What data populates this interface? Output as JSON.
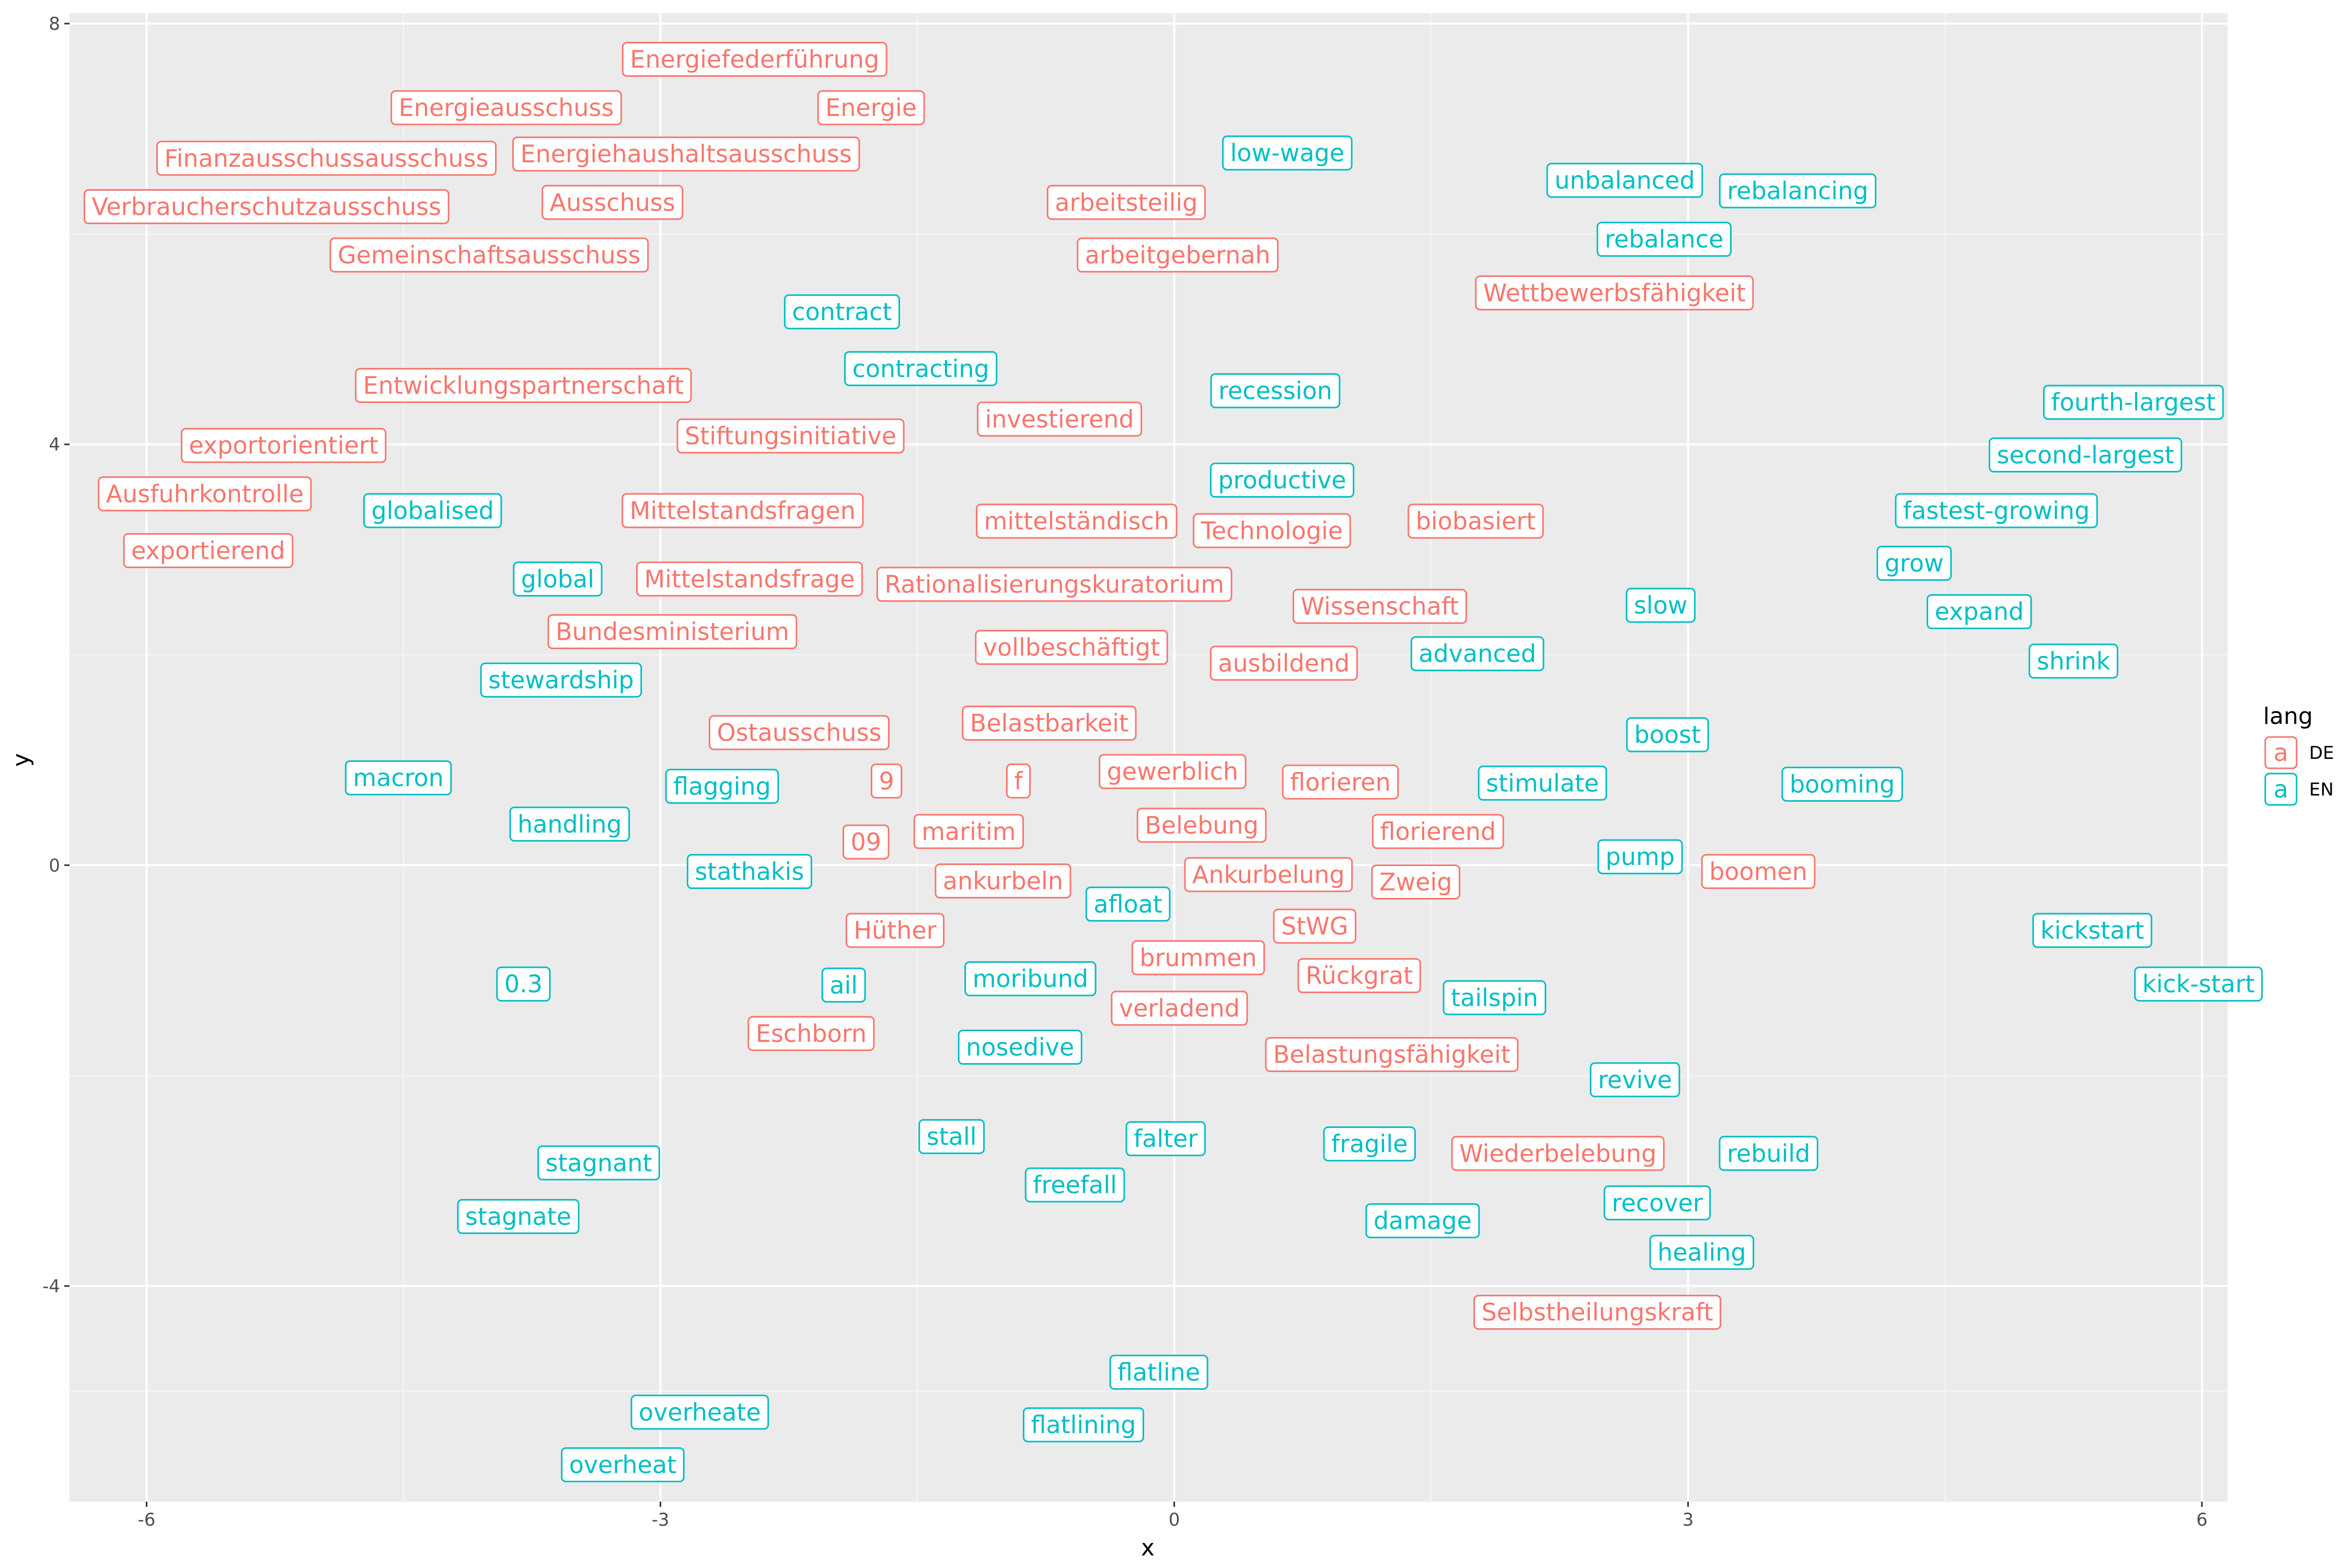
{
  "chart_data": {
    "type": "scatter",
    "xlabel": "x",
    "ylabel": "y",
    "xlim": [
      -6.45,
      6.15
    ],
    "ylim": [
      -6.05,
      8.1
    ],
    "x_ticks": [
      -6,
      -3,
      0,
      3,
      6
    ],
    "y_ticks": [
      8,
      4,
      0,
      -4
    ],
    "x_tick_labels": [
      "-6",
      "-3",
      "0",
      "3",
      "6"
    ],
    "y_tick_labels": [
      "8",
      "4",
      "0",
      "-4"
    ],
    "grid": true,
    "legend": {
      "title": "lang",
      "placement": "right",
      "entries": [
        {
          "key": "DE",
          "label": "DE",
          "glyph": "a",
          "color": "#F8766D"
        },
        {
          "key": "EN",
          "label": "EN",
          "glyph": "a",
          "color": "#00BFC4"
        }
      ]
    },
    "colors": {
      "DE": "#F8766D",
      "EN": "#00BFC4",
      "panel": "#EBEBEB",
      "grid_major": "#FFFFFF"
    },
    "points": [
      {
        "label": "Energiefederführung",
        "x": -2.45,
        "y": 7.66,
        "lang": "DE"
      },
      {
        "label": "Energieausschuss",
        "x": -3.9,
        "y": 7.2,
        "lang": "DE"
      },
      {
        "label": "Energie",
        "x": -1.77,
        "y": 7.2,
        "lang": "DE"
      },
      {
        "label": "Finanzausschussausschuss",
        "x": -4.95,
        "y": 6.72,
        "lang": "DE"
      },
      {
        "label": "Energiehaushaltsausschuss",
        "x": -2.85,
        "y": 6.76,
        "lang": "DE"
      },
      {
        "label": "Verbraucherschutzausschuss",
        "x": -5.3,
        "y": 6.26,
        "lang": "DE"
      },
      {
        "label": "Ausschuss",
        "x": -3.28,
        "y": 6.3,
        "lang": "DE"
      },
      {
        "label": "arbeitsteilig",
        "x": -0.28,
        "y": 6.3,
        "lang": "DE"
      },
      {
        "label": "Gemeinschaftsausschuss",
        "x": -4.0,
        "y": 5.8,
        "lang": "DE"
      },
      {
        "label": "arbeitgebernah",
        "x": 0.02,
        "y": 5.8,
        "lang": "DE"
      },
      {
        "label": "Wettbewerbsfähigkeit",
        "x": 2.57,
        "y": 5.44,
        "lang": "DE"
      },
      {
        "label": "Entwicklungspartnerschaft",
        "x": -3.8,
        "y": 4.56,
        "lang": "DE"
      },
      {
        "label": "investierend",
        "x": -0.67,
        "y": 4.24,
        "lang": "DE"
      },
      {
        "label": "Stiftungsinitiative",
        "x": -2.24,
        "y": 4.08,
        "lang": "DE"
      },
      {
        "label": "exportorientiert",
        "x": -5.2,
        "y": 3.99,
        "lang": "DE"
      },
      {
        "label": "Ausfuhrkontrolle",
        "x": -5.66,
        "y": 3.53,
        "lang": "DE"
      },
      {
        "label": "Mittelstandsfragen",
        "x": -2.52,
        "y": 3.37,
        "lang": "DE"
      },
      {
        "label": "mittelständisch",
        "x": -0.57,
        "y": 3.27,
        "lang": "DE"
      },
      {
        "label": "Technologie",
        "x": 0.57,
        "y": 3.18,
        "lang": "DE"
      },
      {
        "label": "biobasiert",
        "x": 1.76,
        "y": 3.27,
        "lang": "DE"
      },
      {
        "label": "exportierend",
        "x": -5.64,
        "y": 2.99,
        "lang": "DE"
      },
      {
        "label": "Mittelstandsfrage",
        "x": -2.48,
        "y": 2.72,
        "lang": "DE"
      },
      {
        "label": "Rationalisierungskuratorium",
        "x": -0.7,
        "y": 2.67,
        "lang": "DE"
      },
      {
        "label": "Wissenschaft",
        "x": 1.2,
        "y": 2.46,
        "lang": "DE"
      },
      {
        "label": "Bundesministerium",
        "x": -2.93,
        "y": 2.22,
        "lang": "DE"
      },
      {
        "label": "vollbeschäftigt",
        "x": -0.6,
        "y": 2.07,
        "lang": "DE"
      },
      {
        "label": "ausbildend",
        "x": 0.64,
        "y": 1.92,
        "lang": "DE"
      },
      {
        "label": "Belastbarkeit",
        "x": -0.73,
        "y": 1.35,
        "lang": "DE"
      },
      {
        "label": "Ostausschuss",
        "x": -2.19,
        "y": 1.26,
        "lang": "DE"
      },
      {
        "label": "gewerblich",
        "x": -0.01,
        "y": 0.89,
        "lang": "DE"
      },
      {
        "label": "9",
        "x": -1.68,
        "y": 0.8,
        "lang": "DE"
      },
      {
        "label": "f",
        "x": -0.91,
        "y": 0.8,
        "lang": "DE"
      },
      {
        "label": "florieren",
        "x": 0.97,
        "y": 0.79,
        "lang": "DE"
      },
      {
        "label": "Belebung",
        "x": 0.16,
        "y": 0.38,
        "lang": "DE"
      },
      {
        "label": "maritim",
        "x": -1.2,
        "y": 0.32,
        "lang": "DE"
      },
      {
        "label": "florierend",
        "x": 1.54,
        "y": 0.32,
        "lang": "DE"
      },
      {
        "label": "09",
        "x": -1.8,
        "y": 0.22,
        "lang": "DE"
      },
      {
        "label": "ankurbeln",
        "x": -1.0,
        "y": -0.15,
        "lang": "DE"
      },
      {
        "label": "Ankurbelung",
        "x": 0.55,
        "y": -0.09,
        "lang": "DE"
      },
      {
        "label": "Zweig",
        "x": 1.41,
        "y": -0.16,
        "lang": "DE"
      },
      {
        "label": "boomen",
        "x": 3.41,
        "y": -0.06,
        "lang": "DE"
      },
      {
        "label": "Hüther",
        "x": -1.63,
        "y": -0.62,
        "lang": "DE"
      },
      {
        "label": "StWG",
        "x": 0.82,
        "y": -0.58,
        "lang": "DE"
      },
      {
        "label": "brummen",
        "x": 0.14,
        "y": -0.88,
        "lang": "DE"
      },
      {
        "label": "Rückgrat",
        "x": 1.08,
        "y": -1.05,
        "lang": "DE"
      },
      {
        "label": "verladend",
        "x": 0.03,
        "y": -1.36,
        "lang": "DE"
      },
      {
        "label": "Eschborn",
        "x": -2.12,
        "y": -1.6,
        "lang": "DE"
      },
      {
        "label": "Belastungsfähigkeit",
        "x": 1.27,
        "y": -1.8,
        "lang": "DE"
      },
      {
        "label": "Wiederbelebung",
        "x": 2.24,
        "y": -2.74,
        "lang": "DE"
      },
      {
        "label": "Selbstheilungskraft",
        "x": 2.47,
        "y": -4.25,
        "lang": "DE"
      },
      {
        "label": "low-wage",
        "x": 0.66,
        "y": 6.77,
        "lang": "EN"
      },
      {
        "label": "unbalanced",
        "x": 2.63,
        "y": 6.51,
        "lang": "EN"
      },
      {
        "label": "rebalancing",
        "x": 3.64,
        "y": 6.41,
        "lang": "EN"
      },
      {
        "label": "rebalance",
        "x": 2.86,
        "y": 5.95,
        "lang": "EN"
      },
      {
        "label": "contract",
        "x": -1.94,
        "y": 5.26,
        "lang": "EN"
      },
      {
        "label": "contracting",
        "x": -1.48,
        "y": 4.72,
        "lang": "EN"
      },
      {
        "label": "recession",
        "x": 0.59,
        "y": 4.51,
        "lang": "EN"
      },
      {
        "label": "fourth-largest",
        "x": 5.6,
        "y": 4.4,
        "lang": "EN"
      },
      {
        "label": "second-largest",
        "x": 5.32,
        "y": 3.9,
        "lang": "EN"
      },
      {
        "label": "productive",
        "x": 0.63,
        "y": 3.66,
        "lang": "EN"
      },
      {
        "label": "globalised",
        "x": -4.33,
        "y": 3.37,
        "lang": "EN"
      },
      {
        "label": "fastest-growing",
        "x": 4.8,
        "y": 3.37,
        "lang": "EN"
      },
      {
        "label": "grow",
        "x": 4.32,
        "y": 2.87,
        "lang": "EN"
      },
      {
        "label": "global",
        "x": -3.6,
        "y": 2.72,
        "lang": "EN"
      },
      {
        "label": "slow",
        "x": 2.84,
        "y": 2.47,
        "lang": "EN"
      },
      {
        "label": "expand",
        "x": 4.7,
        "y": 2.41,
        "lang": "EN"
      },
      {
        "label": "advanced",
        "x": 1.77,
        "y": 2.01,
        "lang": "EN"
      },
      {
        "label": "shrink",
        "x": 5.25,
        "y": 1.94,
        "lang": "EN"
      },
      {
        "label": "stewardship",
        "x": -3.58,
        "y": 1.76,
        "lang": "EN"
      },
      {
        "label": "boost",
        "x": 2.88,
        "y": 1.24,
        "lang": "EN"
      },
      {
        "label": "macron",
        "x": -4.53,
        "y": 0.83,
        "lang": "EN"
      },
      {
        "label": "flagging",
        "x": -2.64,
        "y": 0.75,
        "lang": "EN"
      },
      {
        "label": "stimulate",
        "x": 2.15,
        "y": 0.78,
        "lang": "EN"
      },
      {
        "label": "booming",
        "x": 3.9,
        "y": 0.77,
        "lang": "EN"
      },
      {
        "label": "handling",
        "x": -3.53,
        "y": 0.39,
        "lang": "EN"
      },
      {
        "label": "pump",
        "x": 2.72,
        "y": 0.08,
        "lang": "EN"
      },
      {
        "label": "stathakis",
        "x": -2.48,
        "y": -0.06,
        "lang": "EN"
      },
      {
        "label": "afloat",
        "x": -0.27,
        "y": -0.37,
        "lang": "EN"
      },
      {
        "label": "kickstart",
        "x": 5.36,
        "y": -0.62,
        "lang": "EN"
      },
      {
        "label": "0.3",
        "x": -3.8,
        "y": -1.13,
        "lang": "EN"
      },
      {
        "label": "ail",
        "x": -1.93,
        "y": -1.14,
        "lang": "EN"
      },
      {
        "label": "moribund",
        "x": -0.84,
        "y": -1.08,
        "lang": "EN"
      },
      {
        "label": "kick-start",
        "x": 5.98,
        "y": -1.13,
        "lang": "EN"
      },
      {
        "label": "tailspin",
        "x": 1.87,
        "y": -1.26,
        "lang": "EN"
      },
      {
        "label": "nosedive",
        "x": -0.9,
        "y": -1.73,
        "lang": "EN"
      },
      {
        "label": "revive",
        "x": 2.69,
        "y": -2.04,
        "lang": "EN"
      },
      {
        "label": "stall",
        "x": -1.3,
        "y": -2.58,
        "lang": "EN"
      },
      {
        "label": "falter",
        "x": -0.05,
        "y": -2.6,
        "lang": "EN"
      },
      {
        "label": "fragile",
        "x": 1.14,
        "y": -2.65,
        "lang": "EN"
      },
      {
        "label": "rebuild",
        "x": 3.47,
        "y": -2.74,
        "lang": "EN"
      },
      {
        "label": "stagnant",
        "x": -3.36,
        "y": -2.83,
        "lang": "EN"
      },
      {
        "label": "freefall",
        "x": -0.58,
        "y": -3.04,
        "lang": "EN"
      },
      {
        "label": "recover",
        "x": 2.82,
        "y": -3.21,
        "lang": "EN"
      },
      {
        "label": "stagnate",
        "x": -3.83,
        "y": -3.34,
        "lang": "EN"
      },
      {
        "label": "damage",
        "x": 1.45,
        "y": -3.38,
        "lang": "EN"
      },
      {
        "label": "healing",
        "x": 3.08,
        "y": -3.68,
        "lang": "EN"
      },
      {
        "label": "flatline",
        "x": -0.09,
        "y": -4.82,
        "lang": "EN"
      },
      {
        "label": "flatlining",
        "x": -0.53,
        "y": -5.32,
        "lang": "EN"
      },
      {
        "label": "overheate",
        "x": -2.77,
        "y": -5.2,
        "lang": "EN"
      },
      {
        "label": "overheat",
        "x": -3.22,
        "y": -5.7,
        "lang": "EN"
      }
    ]
  }
}
